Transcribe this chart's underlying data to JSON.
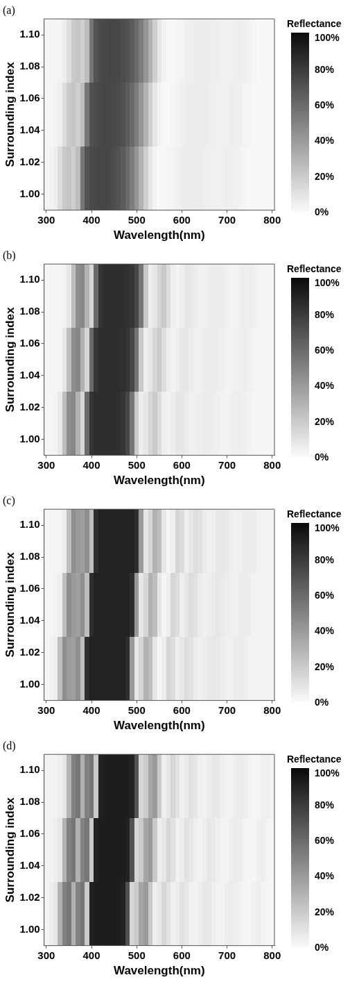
{
  "chart_data": [
    {
      "type": "heatmap",
      "title": "(a)",
      "xlabel": "Wavelength(nm)",
      "ylabel": "Surrounding index",
      "clabel": "Reflectance",
      "categories": [
        "300",
        null,
        null,
        null,
        null,
        null,
        null,
        null,
        null,
        null,
        "400",
        null,
        null,
        null,
        null,
        null,
        null,
        null,
        null,
        null,
        "500",
        null,
        null,
        null,
        null,
        null,
        null,
        null,
        null,
        null,
        "600",
        null,
        null,
        null,
        null,
        null,
        null,
        null,
        null,
        null,
        "700",
        null,
        null,
        null,
        null,
        null,
        null,
        null,
        null,
        null,
        "800"
      ],
      "y_categories": [
        "1.10",
        "1.08",
        "1.06",
        "1.04",
        "1.02",
        "1.00"
      ],
      "clim": [
        0,
        100
      ],
      "cticks": [
        {
          "value": 0,
          "label": "0%"
        },
        {
          "value": 20,
          "label": "20%"
        },
        {
          "value": 40,
          "label": "40%"
        },
        {
          "value": 60,
          "label": "60%"
        },
        {
          "value": 80,
          "label": "80%"
        },
        {
          "value": 100,
          "label": "100%"
        }
      ],
      "cells": [
        [
          2,
          2,
          2,
          3,
          5,
          12,
          20,
          22,
          18,
          25,
          55,
          70,
          73,
          74,
          75,
          75,
          74,
          72,
          70,
          66,
          60,
          52,
          42,
          30,
          18,
          8,
          3,
          1,
          1,
          2,
          3,
          4,
          5,
          6,
          6,
          6,
          6,
          5,
          5,
          4,
          4,
          4,
          5,
          5,
          4,
          3,
          2,
          1,
          1,
          1,
          1
        ],
        [
          2,
          2,
          2,
          3,
          5,
          12,
          20,
          22,
          18,
          25,
          55,
          70,
          73,
          74,
          75,
          75,
          74,
          72,
          70,
          66,
          60,
          52,
          42,
          30,
          18,
          8,
          3,
          1,
          1,
          2,
          3,
          4,
          5,
          6,
          6,
          6,
          6,
          5,
          5,
          4,
          4,
          4,
          5,
          5,
          4,
          3,
          2,
          1,
          1,
          1,
          1
        ],
        [
          2,
          2,
          3,
          5,
          12,
          20,
          22,
          18,
          25,
          55,
          70,
          73,
          74,
          75,
          75,
          74,
          72,
          70,
          66,
          60,
          52,
          42,
          30,
          18,
          8,
          3,
          1,
          1,
          2,
          3,
          4,
          5,
          6,
          6,
          6,
          6,
          5,
          5,
          4,
          4,
          4,
          5,
          5,
          4,
          3,
          2,
          1,
          1,
          1,
          1,
          1
        ],
        [
          2,
          2,
          3,
          5,
          12,
          20,
          22,
          18,
          25,
          55,
          70,
          73,
          74,
          75,
          75,
          74,
          72,
          70,
          66,
          60,
          52,
          42,
          30,
          18,
          8,
          3,
          1,
          1,
          2,
          3,
          4,
          5,
          6,
          6,
          6,
          6,
          5,
          5,
          4,
          4,
          4,
          5,
          5,
          4,
          3,
          2,
          1,
          1,
          1,
          1,
          1
        ],
        [
          2,
          3,
          5,
          12,
          20,
          22,
          18,
          25,
          55,
          70,
          73,
          74,
          75,
          75,
          74,
          72,
          70,
          66,
          60,
          52,
          42,
          30,
          18,
          8,
          3,
          1,
          1,
          2,
          3,
          4,
          5,
          6,
          6,
          6,
          6,
          5,
          5,
          4,
          4,
          4,
          5,
          5,
          4,
          3,
          2,
          1,
          1,
          1,
          1,
          1,
          1
        ],
        [
          2,
          3,
          5,
          12,
          20,
          22,
          18,
          25,
          55,
          70,
          73,
          74,
          75,
          75,
          74,
          72,
          70,
          66,
          60,
          52,
          42,
          30,
          18,
          8,
          3,
          1,
          1,
          2,
          3,
          4,
          5,
          6,
          6,
          6,
          6,
          5,
          5,
          4,
          4,
          4,
          5,
          5,
          4,
          3,
          2,
          1,
          1,
          1,
          1,
          1,
          1
        ]
      ]
    },
    {
      "type": "heatmap",
      "title": "(b)",
      "xlabel": "Wavelength(nm)",
      "ylabel": "Surrounding index",
      "clabel": "Reflectance",
      "categories": [
        "300",
        null,
        null,
        null,
        null,
        null,
        null,
        null,
        null,
        null,
        "400",
        null,
        null,
        null,
        null,
        null,
        null,
        null,
        null,
        null,
        "500",
        null,
        null,
        null,
        null,
        null,
        null,
        null,
        null,
        null,
        "600",
        null,
        null,
        null,
        null,
        null,
        null,
        null,
        null,
        null,
        "700",
        null,
        null,
        null,
        null,
        null,
        null,
        null,
        null,
        null,
        "800"
      ],
      "y_categories": [
        "1.10",
        "1.08",
        "1.06",
        "1.04",
        "1.02",
        "1.00"
      ],
      "clim": [
        0,
        100
      ],
      "cticks": [
        {
          "value": 0,
          "label": "0%"
        },
        {
          "value": 20,
          "label": "20%"
        },
        {
          "value": 40,
          "label": "40%"
        },
        {
          "value": 60,
          "label": "60%"
        },
        {
          "value": 80,
          "label": "80%"
        },
        {
          "value": 100,
          "label": "100%"
        }
      ],
      "cells": [
        [
          2,
          2,
          2,
          2,
          3,
          8,
          25,
          45,
          48,
          30,
          15,
          60,
          82,
          85,
          85,
          85,
          85,
          85,
          84,
          82,
          75,
          55,
          20,
          5,
          8,
          15,
          20,
          12,
          5,
          3,
          5,
          8,
          8,
          6,
          4,
          4,
          5,
          6,
          6,
          5,
          4,
          3,
          3,
          4,
          5,
          5,
          4,
          3,
          2,
          2,
          2
        ],
        [
          2,
          2,
          2,
          2,
          3,
          8,
          25,
          45,
          48,
          30,
          15,
          60,
          82,
          85,
          85,
          85,
          85,
          85,
          84,
          82,
          75,
          55,
          20,
          5,
          8,
          15,
          20,
          12,
          5,
          3,
          5,
          8,
          8,
          6,
          4,
          4,
          5,
          6,
          6,
          5,
          4,
          3,
          3,
          4,
          5,
          5,
          4,
          3,
          2,
          2,
          2
        ],
        [
          2,
          2,
          2,
          3,
          8,
          25,
          45,
          48,
          30,
          15,
          60,
          82,
          85,
          85,
          85,
          85,
          85,
          84,
          82,
          75,
          55,
          20,
          5,
          8,
          15,
          20,
          12,
          5,
          3,
          5,
          8,
          8,
          6,
          4,
          4,
          5,
          6,
          6,
          5,
          4,
          3,
          3,
          4,
          5,
          5,
          4,
          3,
          2,
          2,
          2,
          2
        ],
        [
          2,
          2,
          2,
          3,
          8,
          25,
          45,
          48,
          30,
          15,
          60,
          82,
          85,
          85,
          85,
          85,
          85,
          84,
          82,
          75,
          55,
          20,
          5,
          8,
          15,
          20,
          12,
          5,
          3,
          5,
          8,
          8,
          6,
          4,
          4,
          5,
          6,
          6,
          5,
          4,
          3,
          3,
          4,
          5,
          5,
          4,
          3,
          2,
          2,
          2,
          2
        ],
        [
          2,
          2,
          3,
          8,
          25,
          45,
          48,
          30,
          15,
          60,
          82,
          85,
          85,
          85,
          85,
          85,
          84,
          82,
          75,
          55,
          20,
          5,
          8,
          15,
          20,
          12,
          5,
          3,
          5,
          8,
          8,
          6,
          4,
          4,
          5,
          6,
          6,
          5,
          4,
          3,
          3,
          4,
          5,
          5,
          4,
          3,
          2,
          2,
          2,
          2,
          2
        ],
        [
          2,
          2,
          3,
          8,
          25,
          45,
          48,
          30,
          15,
          60,
          82,
          85,
          85,
          85,
          85,
          85,
          84,
          82,
          75,
          55,
          20,
          5,
          8,
          15,
          20,
          12,
          5,
          3,
          5,
          8,
          8,
          6,
          4,
          4,
          5,
          6,
          6,
          5,
          4,
          3,
          3,
          4,
          5,
          5,
          4,
          3,
          2,
          2,
          2,
          2,
          2
        ]
      ]
    },
    {
      "type": "heatmap",
      "title": "(c)",
      "xlabel": "Wavelength(nm)",
      "ylabel": "Surrounding index",
      "clabel": "Reflectance",
      "categories": [
        "300",
        null,
        null,
        null,
        null,
        null,
        null,
        null,
        null,
        null,
        "400",
        null,
        null,
        null,
        null,
        null,
        null,
        null,
        null,
        null,
        "500",
        null,
        null,
        null,
        null,
        null,
        null,
        null,
        null,
        null,
        "600",
        null,
        null,
        null,
        null,
        null,
        null,
        null,
        null,
        null,
        "700",
        null,
        null,
        null,
        null,
        null,
        null,
        null,
        null,
        null,
        "800"
      ],
      "y_categories": [
        "1.10",
        "1.08",
        "1.06",
        "1.04",
        "1.02",
        "1.00"
      ],
      "clim": [
        0,
        100
      ],
      "cticks": [
        {
          "value": 0,
          "label": "0%"
        },
        {
          "value": 20,
          "label": "20%"
        },
        {
          "value": 40,
          "label": "40%"
        },
        {
          "value": 60,
          "label": "60%"
        },
        {
          "value": 80,
          "label": "80%"
        },
        {
          "value": 100,
          "label": "100%"
        }
      ],
      "cells": [
        [
          2,
          2,
          2,
          3,
          5,
          25,
          45,
          40,
          38,
          45,
          25,
          85,
          90,
          90,
          90,
          90,
          90,
          90,
          90,
          90,
          85,
          40,
          8,
          15,
          30,
          25,
          8,
          2,
          5,
          15,
          12,
          5,
          8,
          12,
          10,
          6,
          4,
          5,
          7,
          8,
          7,
          5,
          4,
          4,
          6,
          6,
          5,
          3,
          3,
          3,
          3
        ],
        [
          2,
          2,
          2,
          3,
          5,
          25,
          45,
          40,
          38,
          45,
          25,
          85,
          90,
          90,
          90,
          90,
          90,
          90,
          90,
          90,
          85,
          40,
          8,
          15,
          30,
          25,
          8,
          2,
          5,
          15,
          12,
          5,
          8,
          12,
          10,
          6,
          4,
          5,
          7,
          8,
          7,
          5,
          4,
          4,
          6,
          6,
          5,
          3,
          3,
          3,
          3
        ],
        [
          2,
          2,
          3,
          5,
          25,
          45,
          40,
          38,
          45,
          25,
          85,
          90,
          90,
          90,
          90,
          90,
          90,
          90,
          90,
          85,
          40,
          8,
          15,
          30,
          25,
          8,
          2,
          5,
          15,
          12,
          5,
          8,
          12,
          10,
          6,
          4,
          5,
          7,
          8,
          7,
          5,
          4,
          4,
          6,
          6,
          5,
          3,
          3,
          3,
          3,
          3
        ],
        [
          2,
          2,
          3,
          5,
          25,
          45,
          40,
          38,
          45,
          25,
          85,
          90,
          90,
          90,
          90,
          90,
          90,
          90,
          90,
          85,
          40,
          8,
          15,
          30,
          25,
          8,
          2,
          5,
          15,
          12,
          5,
          8,
          12,
          10,
          6,
          4,
          5,
          7,
          8,
          7,
          5,
          4,
          4,
          6,
          6,
          5,
          3,
          3,
          3,
          3,
          3
        ],
        [
          2,
          3,
          5,
          25,
          45,
          40,
          38,
          45,
          25,
          85,
          90,
          90,
          90,
          90,
          90,
          90,
          90,
          90,
          85,
          40,
          8,
          15,
          30,
          25,
          8,
          2,
          5,
          15,
          12,
          5,
          8,
          12,
          10,
          6,
          4,
          5,
          7,
          8,
          7,
          5,
          4,
          4,
          6,
          6,
          5,
          3,
          3,
          3,
          3,
          3,
          3
        ],
        [
          2,
          3,
          5,
          25,
          45,
          40,
          38,
          45,
          25,
          85,
          90,
          90,
          90,
          90,
          90,
          90,
          90,
          90,
          85,
          40,
          8,
          15,
          30,
          25,
          8,
          2,
          5,
          15,
          12,
          5,
          8,
          12,
          10,
          6,
          4,
          5,
          7,
          8,
          7,
          5,
          4,
          4,
          6,
          6,
          5,
          3,
          3,
          3,
          3,
          3,
          3
        ]
      ]
    },
    {
      "type": "heatmap",
      "title": "(d)",
      "xlabel": "Wavelength(nm)",
      "ylabel": "Surrounding index",
      "clabel": "Reflectance",
      "categories": [
        "300",
        null,
        null,
        null,
        null,
        null,
        null,
        null,
        null,
        null,
        "400",
        null,
        null,
        null,
        null,
        null,
        null,
        null,
        null,
        null,
        "500",
        null,
        null,
        null,
        null,
        null,
        null,
        null,
        null,
        null,
        "600",
        null,
        null,
        null,
        null,
        null,
        null,
        null,
        null,
        null,
        "700",
        null,
        null,
        null,
        null,
        null,
        null,
        null,
        null,
        null,
        "800"
      ],
      "y_categories": [
        "1.10",
        "1.08",
        "1.06",
        "1.04",
        "1.02",
        "1.00"
      ],
      "clim": [
        0,
        100
      ],
      "cticks": [
        {
          "value": 0,
          "label": "0%"
        },
        {
          "value": 20,
          "label": "20%"
        },
        {
          "value": 40,
          "label": "40%"
        },
        {
          "value": 60,
          "label": "60%"
        },
        {
          "value": 80,
          "label": "80%"
        },
        {
          "value": 100,
          "label": "100%"
        }
      ],
      "cells": [
        [
          3,
          3,
          3,
          5,
          8,
          30,
          50,
          55,
          30,
          50,
          55,
          20,
          90,
          92,
          92,
          92,
          92,
          92,
          92,
          90,
          70,
          15,
          20,
          35,
          40,
          20,
          5,
          8,
          15,
          10,
          4,
          6,
          10,
          8,
          4,
          3,
          5,
          8,
          7,
          4,
          3,
          3,
          5,
          6,
          5,
          3,
          2,
          2,
          4,
          5,
          3
        ],
        [
          3,
          3,
          3,
          5,
          8,
          30,
          50,
          55,
          30,
          50,
          55,
          20,
          90,
          92,
          92,
          92,
          92,
          92,
          92,
          90,
          70,
          15,
          20,
          35,
          40,
          20,
          5,
          8,
          15,
          10,
          4,
          6,
          10,
          8,
          4,
          3,
          5,
          8,
          7,
          4,
          3,
          3,
          5,
          6,
          5,
          3,
          2,
          2,
          4,
          5,
          3
        ],
        [
          3,
          3,
          5,
          8,
          30,
          50,
          55,
          30,
          50,
          55,
          20,
          90,
          92,
          92,
          92,
          92,
          92,
          92,
          90,
          70,
          15,
          20,
          35,
          40,
          20,
          5,
          8,
          15,
          10,
          4,
          6,
          10,
          8,
          4,
          3,
          5,
          8,
          7,
          4,
          3,
          3,
          5,
          6,
          5,
          3,
          2,
          2,
          4,
          5,
          3,
          2
        ],
        [
          3,
          3,
          5,
          8,
          30,
          50,
          55,
          30,
          50,
          55,
          20,
          90,
          92,
          92,
          92,
          92,
          92,
          92,
          90,
          70,
          15,
          20,
          35,
          40,
          20,
          5,
          8,
          15,
          10,
          4,
          6,
          10,
          8,
          4,
          3,
          5,
          8,
          7,
          4,
          3,
          3,
          5,
          6,
          5,
          3,
          2,
          2,
          4,
          5,
          3,
          2
        ],
        [
          3,
          5,
          8,
          30,
          50,
          55,
          30,
          50,
          55,
          20,
          90,
          92,
          92,
          92,
          92,
          92,
          92,
          90,
          70,
          15,
          20,
          35,
          40,
          20,
          5,
          8,
          15,
          10,
          4,
          6,
          10,
          8,
          4,
          3,
          5,
          8,
          7,
          4,
          3,
          3,
          5,
          6,
          5,
          3,
          2,
          2,
          4,
          5,
          3,
          2,
          2
        ],
        [
          3,
          5,
          8,
          30,
          50,
          55,
          30,
          50,
          55,
          20,
          90,
          92,
          92,
          92,
          92,
          92,
          92,
          90,
          70,
          15,
          20,
          35,
          40,
          20,
          5,
          8,
          15,
          10,
          4,
          6,
          10,
          8,
          4,
          3,
          5,
          8,
          7,
          4,
          3,
          3,
          5,
          6,
          5,
          3,
          2,
          2,
          4,
          5,
          3,
          2,
          2
        ]
      ]
    }
  ]
}
